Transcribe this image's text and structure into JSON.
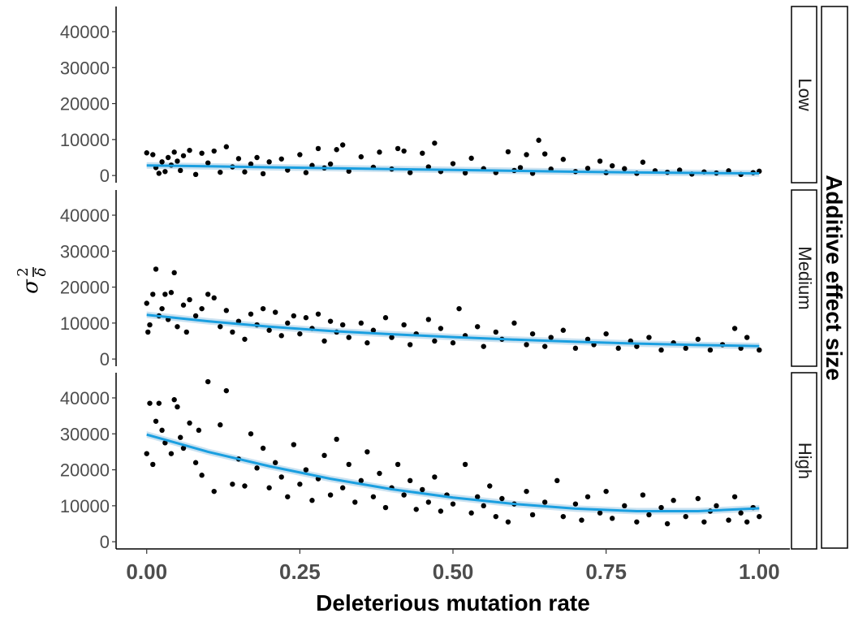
{
  "chart_data": {
    "type": "scatter",
    "xlabel": "Deleterious mutation rate",
    "ylabel": {
      "base": "σ",
      "superscript": "2",
      "subscript": "δ"
    },
    "facet_title": "Additive effect size",
    "x_ticks": [
      "0.00",
      "0.25",
      "0.50",
      "0.75",
      "1.00"
    ],
    "x_tick_values": [
      0,
      0.25,
      0.5,
      0.75,
      1.0
    ],
    "xlim": [
      -0.05,
      1.05
    ],
    "y_ticks": [
      "0",
      "10000",
      "20000",
      "30000",
      "40000"
    ],
    "y_tick_values": [
      0,
      10000,
      20000,
      30000,
      40000
    ],
    "ylim": [
      -2000,
      47000
    ],
    "grid": false,
    "point_color": "#000000",
    "trend_color": "#1a9fe0",
    "ribbon_color": "#9fcbe6",
    "panels": [
      {
        "label": "Low",
        "trend": [
          [
            0,
            2800
          ],
          [
            0.1,
            2550
          ],
          [
            0.2,
            2300
          ],
          [
            0.3,
            2050
          ],
          [
            0.4,
            1800
          ],
          [
            0.5,
            1550
          ],
          [
            0.6,
            1300
          ],
          [
            0.7,
            1050
          ],
          [
            0.8,
            850
          ],
          [
            0.9,
            700
          ],
          [
            1.0,
            600
          ]
        ],
        "points": [
          [
            0.0,
            6300
          ],
          [
            0.01,
            5800
          ],
          [
            0.015,
            2200
          ],
          [
            0.02,
            600
          ],
          [
            0.025,
            3800
          ],
          [
            0.03,
            1100
          ],
          [
            0.035,
            5000
          ],
          [
            0.04,
            2900
          ],
          [
            0.045,
            6500
          ],
          [
            0.05,
            4000
          ],
          [
            0.055,
            1400
          ],
          [
            0.06,
            5500
          ],
          [
            0.07,
            7000
          ],
          [
            0.08,
            300
          ],
          [
            0.09,
            6200
          ],
          [
            0.1,
            3500
          ],
          [
            0.11,
            6800
          ],
          [
            0.12,
            900
          ],
          [
            0.13,
            8000
          ],
          [
            0.14,
            2400
          ],
          [
            0.15,
            4700
          ],
          [
            0.16,
            1000
          ],
          [
            0.17,
            3200
          ],
          [
            0.18,
            5000
          ],
          [
            0.19,
            500
          ],
          [
            0.2,
            3800
          ],
          [
            0.22,
            4600
          ],
          [
            0.23,
            1500
          ],
          [
            0.25,
            5800
          ],
          [
            0.26,
            800
          ],
          [
            0.27,
            2800
          ],
          [
            0.28,
            7500
          ],
          [
            0.29,
            2100
          ],
          [
            0.3,
            3200
          ],
          [
            0.31,
            7200
          ],
          [
            0.32,
            8500
          ],
          [
            0.33,
            1200
          ],
          [
            0.35,
            5200
          ],
          [
            0.37,
            2300
          ],
          [
            0.38,
            6500
          ],
          [
            0.4,
            1800
          ],
          [
            0.41,
            7500
          ],
          [
            0.42,
            6800
          ],
          [
            0.43,
            800
          ],
          [
            0.45,
            6200
          ],
          [
            0.46,
            2400
          ],
          [
            0.47,
            9000
          ],
          [
            0.48,
            1100
          ],
          [
            0.5,
            3300
          ],
          [
            0.52,
            700
          ],
          [
            0.53,
            4800
          ],
          [
            0.55,
            1900
          ],
          [
            0.57,
            800
          ],
          [
            0.59,
            6600
          ],
          [
            0.6,
            1400
          ],
          [
            0.61,
            2200
          ],
          [
            0.62,
            5800
          ],
          [
            0.63,
            600
          ],
          [
            0.64,
            9800
          ],
          [
            0.65,
            6000
          ],
          [
            0.66,
            1800
          ],
          [
            0.68,
            4500
          ],
          [
            0.7,
            1100
          ],
          [
            0.72,
            2000
          ],
          [
            0.74,
            4000
          ],
          [
            0.75,
            800
          ],
          [
            0.76,
            2700
          ],
          [
            0.78,
            1900
          ],
          [
            0.8,
            600
          ],
          [
            0.81,
            3700
          ],
          [
            0.83,
            1300
          ],
          [
            0.85,
            900
          ],
          [
            0.87,
            1500
          ],
          [
            0.89,
            400
          ],
          [
            0.91,
            1000
          ],
          [
            0.93,
            700
          ],
          [
            0.95,
            1300
          ],
          [
            0.97,
            300
          ],
          [
            0.99,
            800
          ],
          [
            1.0,
            1200
          ]
        ]
      },
      {
        "label": "Medium",
        "trend": [
          [
            0,
            12300
          ],
          [
            0.1,
            10500
          ],
          [
            0.2,
            9000
          ],
          [
            0.3,
            7800
          ],
          [
            0.4,
            6900
          ],
          [
            0.5,
            6100
          ],
          [
            0.6,
            5400
          ],
          [
            0.7,
            4800
          ],
          [
            0.8,
            4300
          ],
          [
            0.9,
            3900
          ],
          [
            1.0,
            3600
          ]
        ],
        "points": [
          [
            0.0,
            15500
          ],
          [
            0.002,
            7500
          ],
          [
            0.005,
            9500
          ],
          [
            0.01,
            18000
          ],
          [
            0.015,
            25000
          ],
          [
            0.02,
            12000
          ],
          [
            0.025,
            14000
          ],
          [
            0.03,
            18000
          ],
          [
            0.035,
            11000
          ],
          [
            0.04,
            18500
          ],
          [
            0.045,
            24000
          ],
          [
            0.05,
            9000
          ],
          [
            0.06,
            15000
          ],
          [
            0.065,
            7500
          ],
          [
            0.07,
            16500
          ],
          [
            0.08,
            12000
          ],
          [
            0.09,
            14000
          ],
          [
            0.1,
            18000
          ],
          [
            0.11,
            17000
          ],
          [
            0.12,
            9000
          ],
          [
            0.13,
            13500
          ],
          [
            0.14,
            7500
          ],
          [
            0.15,
            10500
          ],
          [
            0.16,
            5500
          ],
          [
            0.17,
            12500
          ],
          [
            0.18,
            9500
          ],
          [
            0.19,
            14000
          ],
          [
            0.2,
            8000
          ],
          [
            0.21,
            13000
          ],
          [
            0.22,
            6500
          ],
          [
            0.23,
            10000
          ],
          [
            0.24,
            12000
          ],
          [
            0.25,
            7000
          ],
          [
            0.26,
            11500
          ],
          [
            0.27,
            8500
          ],
          [
            0.28,
            12500
          ],
          [
            0.29,
            5000
          ],
          [
            0.3,
            10500
          ],
          [
            0.31,
            7500
          ],
          [
            0.32,
            9500
          ],
          [
            0.33,
            6000
          ],
          [
            0.35,
            10000
          ],
          [
            0.36,
            4500
          ],
          [
            0.37,
            8000
          ],
          [
            0.39,
            11500
          ],
          [
            0.4,
            6000
          ],
          [
            0.42,
            9500
          ],
          [
            0.43,
            4000
          ],
          [
            0.44,
            7000
          ],
          [
            0.46,
            11000
          ],
          [
            0.47,
            5000
          ],
          [
            0.48,
            8500
          ],
          [
            0.5,
            4500
          ],
          [
            0.51,
            14000
          ],
          [
            0.52,
            6500
          ],
          [
            0.54,
            9000
          ],
          [
            0.55,
            3500
          ],
          [
            0.57,
            7500
          ],
          [
            0.58,
            5500
          ],
          [
            0.6,
            10000
          ],
          [
            0.62,
            4000
          ],
          [
            0.63,
            7000
          ],
          [
            0.65,
            3500
          ],
          [
            0.66,
            6000
          ],
          [
            0.68,
            8000
          ],
          [
            0.7,
            3000
          ],
          [
            0.72,
            5500
          ],
          [
            0.73,
            4000
          ],
          [
            0.75,
            7000
          ],
          [
            0.77,
            3000
          ],
          [
            0.79,
            5000
          ],
          [
            0.8,
            3500
          ],
          [
            0.82,
            6000
          ],
          [
            0.84,
            2500
          ],
          [
            0.86,
            4500
          ],
          [
            0.88,
            3000
          ],
          [
            0.9,
            5500
          ],
          [
            0.92,
            2500
          ],
          [
            0.94,
            4000
          ],
          [
            0.96,
            8500
          ],
          [
            0.97,
            3000
          ],
          [
            0.98,
            6000
          ],
          [
            1.0,
            2500
          ]
        ]
      },
      {
        "label": "High",
        "trend": [
          [
            0,
            29800
          ],
          [
            0.1,
            25000
          ],
          [
            0.2,
            21000
          ],
          [
            0.3,
            17500
          ],
          [
            0.4,
            14600
          ],
          [
            0.5,
            12300
          ],
          [
            0.6,
            10500
          ],
          [
            0.7,
            9200
          ],
          [
            0.8,
            8500
          ],
          [
            0.9,
            8500
          ],
          [
            1.0,
            9300
          ]
        ],
        "points": [
          [
            0.0,
            24500
          ],
          [
            0.005,
            38500
          ],
          [
            0.01,
            21500
          ],
          [
            0.015,
            33500
          ],
          [
            0.02,
            38500
          ],
          [
            0.025,
            31000
          ],
          [
            0.03,
            27500
          ],
          [
            0.04,
            24500
          ],
          [
            0.045,
            39500
          ],
          [
            0.05,
            37500
          ],
          [
            0.055,
            29000
          ],
          [
            0.06,
            26000
          ],
          [
            0.07,
            33000
          ],
          [
            0.08,
            22000
          ],
          [
            0.085,
            31000
          ],
          [
            0.09,
            18500
          ],
          [
            0.1,
            44500
          ],
          [
            0.11,
            14000
          ],
          [
            0.12,
            32500
          ],
          [
            0.13,
            42000
          ],
          [
            0.14,
            16000
          ],
          [
            0.15,
            23000
          ],
          [
            0.16,
            15500
          ],
          [
            0.17,
            30000
          ],
          [
            0.18,
            20500
          ],
          [
            0.19,
            26000
          ],
          [
            0.2,
            15000
          ],
          [
            0.21,
            22000
          ],
          [
            0.22,
            18000
          ],
          [
            0.23,
            12500
          ],
          [
            0.24,
            27000
          ],
          [
            0.25,
            16000
          ],
          [
            0.26,
            20000
          ],
          [
            0.27,
            11500
          ],
          [
            0.28,
            17500
          ],
          [
            0.29,
            24000
          ],
          [
            0.3,
            13000
          ],
          [
            0.31,
            28500
          ],
          [
            0.32,
            15000
          ],
          [
            0.33,
            21500
          ],
          [
            0.34,
            11000
          ],
          [
            0.35,
            17000
          ],
          [
            0.36,
            25000
          ],
          [
            0.37,
            12500
          ],
          [
            0.38,
            19000
          ],
          [
            0.39,
            9500
          ],
          [
            0.4,
            15000
          ],
          [
            0.41,
            21500
          ],
          [
            0.42,
            13000
          ],
          [
            0.43,
            17000
          ],
          [
            0.44,
            9000
          ],
          [
            0.45,
            14500
          ],
          [
            0.46,
            11000
          ],
          [
            0.47,
            18000
          ],
          [
            0.48,
            8500
          ],
          [
            0.49,
            13000
          ],
          [
            0.5,
            10500
          ],
          [
            0.52,
            21500
          ],
          [
            0.53,
            8000
          ],
          [
            0.54,
            12500
          ],
          [
            0.55,
            10000
          ],
          [
            0.56,
            15500
          ],
          [
            0.57,
            7000
          ],
          [
            0.58,
            12000
          ],
          [
            0.59,
            5500
          ],
          [
            0.6,
            10500
          ],
          [
            0.62,
            14000
          ],
          [
            0.63,
            7500
          ],
          [
            0.65,
            11000
          ],
          [
            0.67,
            17000
          ],
          [
            0.68,
            7000
          ],
          [
            0.7,
            10500
          ],
          [
            0.71,
            6000
          ],
          [
            0.72,
            12500
          ],
          [
            0.74,
            8000
          ],
          [
            0.75,
            14000
          ],
          [
            0.76,
            6500
          ],
          [
            0.78,
            10000
          ],
          [
            0.8,
            5500
          ],
          [
            0.81,
            13000
          ],
          [
            0.82,
            7500
          ],
          [
            0.84,
            9500
          ],
          [
            0.85,
            5000
          ],
          [
            0.86,
            11500
          ],
          [
            0.88,
            7000
          ],
          [
            0.9,
            12000
          ],
          [
            0.91,
            5500
          ],
          [
            0.92,
            8500
          ],
          [
            0.93,
            10000
          ],
          [
            0.95,
            6000
          ],
          [
            0.96,
            12500
          ],
          [
            0.97,
            8000
          ],
          [
            0.98,
            5500
          ],
          [
            0.99,
            9500
          ],
          [
            1.0,
            7000
          ]
        ]
      }
    ]
  }
}
